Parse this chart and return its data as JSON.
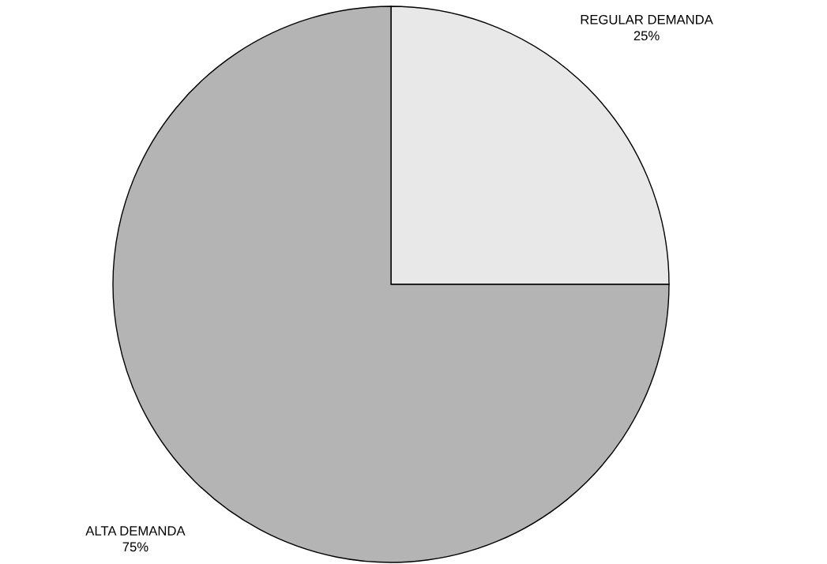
{
  "chart_data": {
    "type": "pie",
    "categories": [
      "REGULAR DEMANDA",
      "ALTA DEMANDA"
    ],
    "values": [
      25,
      75
    ],
    "value_labels": [
      "25%",
      "75%"
    ],
    "colors": [
      "#e8e8e8",
      "#b4b4b4"
    ]
  }
}
